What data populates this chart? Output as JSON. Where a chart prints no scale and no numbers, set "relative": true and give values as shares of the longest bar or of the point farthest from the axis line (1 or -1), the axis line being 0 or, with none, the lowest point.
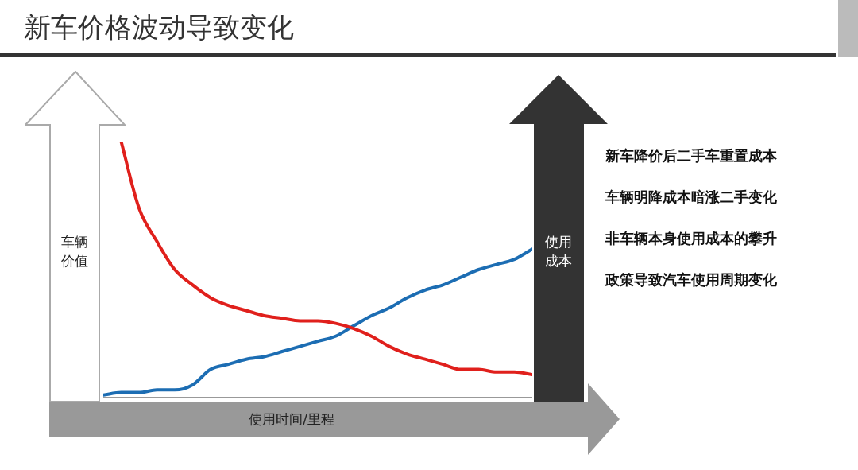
{
  "chart_data": {
    "type": "line",
    "title": "新车价格波动导致变化",
    "xlabel": "使用时间/里程",
    "ylabel": "车辆价值",
    "y2label": "使用成本",
    "relative": true,
    "categories": [
      null,
      null,
      null,
      null,
      null,
      null,
      null,
      null,
      null,
      null,
      null,
      null,
      null,
      null,
      null,
      null,
      null,
      null,
      null,
      null,
      null,
      null,
      null,
      null,
      null
    ],
    "series": [
      {
        "color": "#e0201c",
        "values": [
          null,
          1.0,
          0.74,
          0.61,
          0.5,
          0.44,
          0.39,
          0.36,
          0.34,
          0.32,
          0.31,
          0.3,
          0.3,
          0.29,
          0.27,
          0.24,
          0.2,
          0.17,
          0.15,
          0.13,
          0.11,
          0.11,
          0.1,
          0.1,
          0.09
        ]
      },
      {
        "color": "#1c6db3",
        "values": [
          0.01,
          0.02,
          0.02,
          0.03,
          0.03,
          0.05,
          0.11,
          0.13,
          0.15,
          0.16,
          0.18,
          0.2,
          0.22,
          0.24,
          0.28,
          0.32,
          0.35,
          0.39,
          0.42,
          0.44,
          0.47,
          0.5,
          0.52,
          0.54,
          0.58
        ]
      }
    ],
    "annotations": [
      "新车降价后二手车重置成本",
      "车辆明降成本暗涨二手变化",
      "非车辆本身使用成本的攀升",
      "政策导致汽车使用周期变化"
    ]
  }
}
